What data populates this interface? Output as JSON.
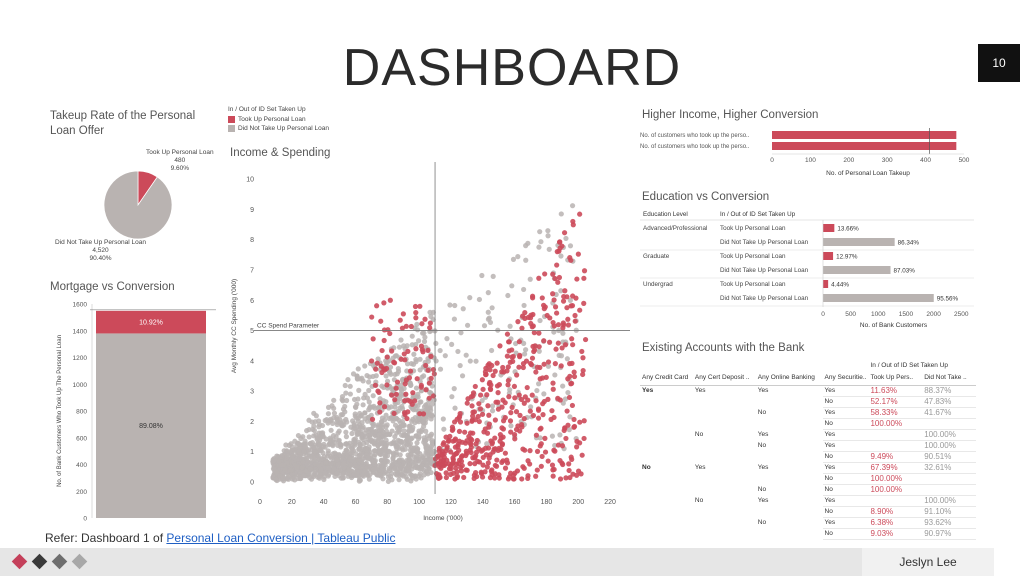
{
  "title": "DASHBOARD",
  "page_number": "10",
  "refer_text": "Refer: Dashboard 1 of ",
  "refer_link": "Personal Loan Conversion | Tableau Public",
  "author": "Jeslyn Lee",
  "colors": {
    "took": "#cc4a5a",
    "not": "#b9b3b1",
    "axis": "#888888"
  },
  "legend": {
    "title": "In / Out of ID Set Taken Up",
    "items": [
      "Took Up Personal Loan",
      "Did Not Take Up Personal Loan"
    ]
  },
  "chart_data": [
    {
      "type": "pie",
      "title_line1": "Takeup Rate of the Personal",
      "title_line2": "Loan Offer",
      "slices": [
        {
          "name": "Took Up Personal Loan",
          "value": 480,
          "pct": "9.60%",
          "value_label": "480"
        },
        {
          "name": "Did Not Take Up Personal Loan",
          "value": 4520,
          "pct": "90.40%",
          "value_label": "4,520"
        }
      ]
    },
    {
      "type": "bar",
      "title": "Mortgage vs Conversion",
      "ylabel": "No. of Bank Customers Who Took Up The Personal Loan",
      "ylim": [
        0,
        1600
      ],
      "yticks": [
        "0",
        "200",
        "400",
        "600",
        "800",
        "1000",
        "1200",
        "1400",
        "1600"
      ],
      "segments": [
        {
          "name": "Did Not Take Up Personal Loan",
          "value": 1380,
          "label": "89.08%"
        },
        {
          "name": "Took Up Personal Loan",
          "value": 169,
          "label": "10.92%"
        }
      ]
    },
    {
      "type": "scatter",
      "title": "Income & Spending",
      "xlabel": "Income ('000)",
      "ylabel": "Avg Monthly CC Spending ('000)",
      "xlim": [
        0,
        230
      ],
      "ylim": [
        0,
        10.3
      ],
      "xticks": [
        "0",
        "20",
        "40",
        "60",
        "80",
        "100",
        "120",
        "140",
        "160",
        "180",
        "200",
        "220"
      ],
      "yticks": [
        "0",
        "1",
        "2",
        "3",
        "4",
        "5",
        "6",
        "7",
        "8",
        "9",
        "10"
      ],
      "ref_x": 110,
      "ref_y": 5,
      "ref_label": "CC Spend Parameter"
    },
    {
      "type": "bar",
      "orientation": "horizontal",
      "title": "Higher Income, Higher Conversion",
      "xlabel": "No. of Personal Loan Takeup",
      "xlim": [
        0,
        500
      ],
      "xticks": [
        "0",
        "100",
        "200",
        "300",
        "400",
        "500"
      ],
      "categories": [
        "No. of customers who took up the perso..",
        "No. of customers who took up the perso.."
      ],
      "values": [
        480,
        480
      ],
      "ref_x": 410
    },
    {
      "type": "bar",
      "orientation": "horizontal",
      "title": "Education vs Conversion",
      "xlabel": "No. of Bank Customers",
      "xlim": [
        0,
        2550
      ],
      "xticks": [
        "0",
        "500",
        "1000",
        "1500",
        "2000",
        "2500"
      ],
      "col_edu": "Education Level",
      "col_set": "In / Out of ID Set Taken Up",
      "groups": [
        {
          "level": "Advanced/Professional",
          "rows": [
            {
              "set": "Took Up Personal Loan",
              "value": 205,
              "label": "13.66%"
            },
            {
              "set": "Did Not Take Up Personal Loan",
              "value": 1296,
              "label": "86.34%"
            }
          ]
        },
        {
          "level": "Graduate",
          "rows": [
            {
              "set": "Took Up Personal Loan",
              "value": 182,
              "label": "12.97%"
            },
            {
              "set": "Did Not Take Up Personal Loan",
              "value": 1221,
              "label": "87.03%"
            }
          ]
        },
        {
          "level": "Undergrad",
          "rows": [
            {
              "set": "Took Up Personal Loan",
              "value": 93,
              "label": "4.44%"
            },
            {
              "set": "Did Not Take Up Personal Loan",
              "value": 2003,
              "label": "95.56%"
            }
          ]
        }
      ]
    },
    {
      "type": "table",
      "title": "Existing Accounts with the Bank",
      "super_header": "In / Out of ID Set Taken Up",
      "headers": [
        "Any Credit Card",
        "Any Cert Deposit ..",
        "Any Online Banking",
        "Any Securitie..",
        "Took Up Pers..",
        "Did Not Take .."
      ],
      "rows": [
        [
          "Yes",
          "Yes",
          "Yes",
          "Yes",
          "11.63%",
          "88.37%"
        ],
        [
          "",
          "",
          "",
          "No",
          "52.17%",
          "47.83%"
        ],
        [
          "",
          "",
          "No",
          "Yes",
          "58.33%",
          "41.67%"
        ],
        [
          "",
          "",
          "",
          "No",
          "100.00%",
          ""
        ],
        [
          "",
          "No",
          "Yes",
          "Yes",
          "",
          "100.00%"
        ],
        [
          "",
          "",
          "No",
          "Yes",
          "",
          "100.00%"
        ],
        [
          "",
          "",
          "",
          "No",
          "9.49%",
          "90.51%"
        ],
        [
          "No",
          "Yes",
          "Yes",
          "Yes",
          "67.39%",
          "32.61%"
        ],
        [
          "",
          "",
          "",
          "No",
          "100.00%",
          ""
        ],
        [
          "",
          "",
          "No",
          "No",
          "100.00%",
          ""
        ],
        [
          "",
          "No",
          "Yes",
          "Yes",
          "",
          "100.00%"
        ],
        [
          "",
          "",
          "",
          "No",
          "8.90%",
          "91.10%"
        ],
        [
          "",
          "",
          "No",
          "Yes",
          "6.38%",
          "93.62%"
        ],
        [
          "",
          "",
          "",
          "No",
          "9.03%",
          "90.97%"
        ]
      ]
    }
  ]
}
